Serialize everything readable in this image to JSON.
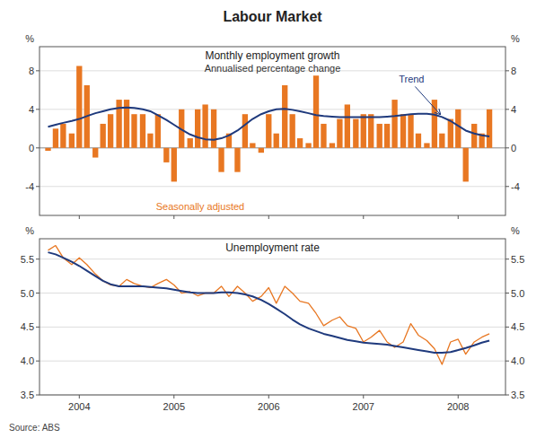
{
  "title": "Labour Market",
  "source": "Source: ABS",
  "chart_data": [
    {
      "type": "bar",
      "title": "Monthly employment growth",
      "subtitle": "Annualised percentage change",
      "ylabel": "%",
      "y2label": "%",
      "x": [
        2003.67,
        2003.75,
        2003.83,
        2003.92,
        2004.0,
        2004.08,
        2004.17,
        2004.25,
        2004.33,
        2004.42,
        2004.5,
        2004.58,
        2004.67,
        2004.75,
        2004.83,
        2004.92,
        2005.0,
        2005.08,
        2005.17,
        2005.25,
        2005.33,
        2005.42,
        2005.5,
        2005.58,
        2005.67,
        2005.75,
        2005.83,
        2005.92,
        2006.0,
        2006.08,
        2006.17,
        2006.25,
        2006.33,
        2006.42,
        2006.5,
        2006.58,
        2006.67,
        2006.75,
        2006.83,
        2006.92,
        2007.0,
        2007.08,
        2007.17,
        2007.25,
        2007.33,
        2007.42,
        2007.5,
        2007.58,
        2007.67,
        2007.75,
        2007.83,
        2007.92,
        2008.0,
        2008.08,
        2008.17,
        2008.25,
        2008.33
      ],
      "series": [
        {
          "type": "bar",
          "color": "#E87722",
          "values": [
            -0.3,
            2.0,
            2.5,
            1.5,
            8.5,
            6.5,
            -1.0,
            2.5,
            3.5,
            5.0,
            5.0,
            3.5,
            3.5,
            1.5,
            3.5,
            -1.5,
            -3.5,
            4.0,
            1.0,
            4.0,
            4.5,
            4.0,
            -2.5,
            1.5,
            -2.5,
            3.5,
            0.5,
            -0.5,
            3.5,
            1.5,
            6.5,
            3.5,
            1.0,
            0.5,
            7.5,
            2.5,
            0.5,
            3.0,
            4.5,
            3.0,
            3.5,
            3.5,
            2.5,
            2.5,
            5.0,
            3.5,
            3.5,
            1.5,
            0.5,
            5.0,
            1.5,
            3.0,
            4.0,
            -3.5,
            2.5,
            1.5,
            4.0
          ]
        },
        {
          "type": "line",
          "color": "#1F3A7D",
          "values": [
            2.2,
            2.4,
            2.6,
            2.8,
            3.0,
            3.3,
            3.6,
            3.8,
            4.0,
            4.15,
            4.2,
            4.15,
            4.0,
            3.8,
            3.4,
            2.9,
            2.4,
            1.9,
            1.4,
            1.1,
            0.9,
            0.85,
            1.0,
            1.3,
            1.8,
            2.4,
            3.0,
            3.5,
            3.8,
            4.0,
            4.05,
            3.95,
            3.8,
            3.6,
            3.4,
            3.3,
            3.25,
            3.2,
            3.2,
            3.2,
            3.2,
            3.2,
            3.2,
            3.25,
            3.3,
            3.4,
            3.5,
            3.55,
            3.55,
            3.45,
            3.2,
            2.8,
            2.3,
            1.8,
            1.5,
            1.3,
            1.2
          ]
        }
      ],
      "annotations": [
        {
          "text": "Seasonally adjusted",
          "color": "#E87722"
        },
        {
          "text": "Trend",
          "color": "#1F3A7D",
          "x": 2007.83,
          "y": 3.2
        }
      ],
      "xlim": [
        2003.58,
        2008.5
      ],
      "xticks": [
        2004,
        2005,
        2006,
        2007,
        2008
      ],
      "ylim": [
        -7.0,
        10.5
      ],
      "yticks": [
        -4,
        0,
        4,
        8
      ],
      "y2lim": [
        -7.0,
        10.5
      ],
      "y2ticks": [
        -4,
        0,
        4,
        8
      ],
      "grid": true,
      "tick_labels": "y"
    },
    {
      "type": "line",
      "title": "Unemployment rate",
      "ylabel": "%",
      "y2label": "%",
      "x": [
        2003.67,
        2003.75,
        2003.83,
        2003.92,
        2004.0,
        2004.08,
        2004.17,
        2004.25,
        2004.33,
        2004.42,
        2004.5,
        2004.58,
        2004.67,
        2004.75,
        2004.83,
        2004.92,
        2005.0,
        2005.08,
        2005.17,
        2005.25,
        2005.33,
        2005.42,
        2005.5,
        2005.58,
        2005.67,
        2005.75,
        2005.83,
        2005.92,
        2006.0,
        2006.08,
        2006.17,
        2006.25,
        2006.33,
        2006.42,
        2006.5,
        2006.58,
        2006.67,
        2006.75,
        2006.83,
        2006.92,
        2007.0,
        2007.08,
        2007.17,
        2007.25,
        2007.33,
        2007.42,
        2007.5,
        2007.58,
        2007.67,
        2007.75,
        2007.83,
        2007.92,
        2008.0,
        2008.08,
        2008.17,
        2008.25,
        2008.33
      ],
      "series": [
        {
          "type": "line",
          "color": "#E87722",
          "values": [
            5.63,
            5.7,
            5.52,
            5.42,
            5.52,
            5.42,
            5.28,
            5.18,
            5.12,
            5.1,
            5.2,
            5.14,
            5.1,
            5.08,
            5.14,
            5.2,
            5.12,
            5.0,
            5.02,
            4.96,
            5.0,
            5.0,
            5.1,
            4.95,
            5.1,
            5.0,
            4.88,
            4.95,
            5.08,
            4.85,
            5.1,
            5.0,
            4.88,
            4.85,
            4.7,
            4.52,
            4.6,
            4.65,
            4.52,
            4.48,
            4.28,
            4.35,
            4.45,
            4.28,
            4.2,
            4.28,
            4.55,
            4.38,
            4.3,
            4.18,
            3.95,
            4.28,
            4.32,
            4.1,
            4.28,
            4.35,
            4.4
          ]
        },
        {
          "type": "line",
          "color": "#1F3A7D",
          "values": [
            5.6,
            5.57,
            5.52,
            5.46,
            5.4,
            5.33,
            5.25,
            5.18,
            5.13,
            5.1,
            5.1,
            5.1,
            5.1,
            5.09,
            5.08,
            5.07,
            5.05,
            5.03,
            5.01,
            5.0,
            5.0,
            5.0,
            5.01,
            5.01,
            5.0,
            4.98,
            4.95,
            4.9,
            4.84,
            4.77,
            4.69,
            4.61,
            4.54,
            4.48,
            4.44,
            4.4,
            4.37,
            4.34,
            4.31,
            4.29,
            4.27,
            4.26,
            4.25,
            4.24,
            4.22,
            4.2,
            4.18,
            4.16,
            4.14,
            4.12,
            4.12,
            4.13,
            4.16,
            4.19,
            4.23,
            4.27,
            4.3
          ]
        }
      ],
      "xlim": [
        2003.58,
        2008.5
      ],
      "xticks": [
        2004,
        2005,
        2006,
        2007,
        2008
      ],
      "ylim": [
        3.5,
        5.8
      ],
      "yticks": [
        3.5,
        {
          "value": 4,
          "label": "4.0"
        },
        4.5,
        {
          "value": 5,
          "label": "5.0"
        },
        5.5
      ],
      "y2lim": [
        3.5,
        5.8
      ],
      "y2ticks": [
        3.5,
        {
          "value": 4,
          "label": "4.0"
        },
        4.5,
        {
          "value": 5,
          "label": "5.0"
        },
        5.5
      ],
      "grid": true,
      "tick_labels": true
    }
  ]
}
